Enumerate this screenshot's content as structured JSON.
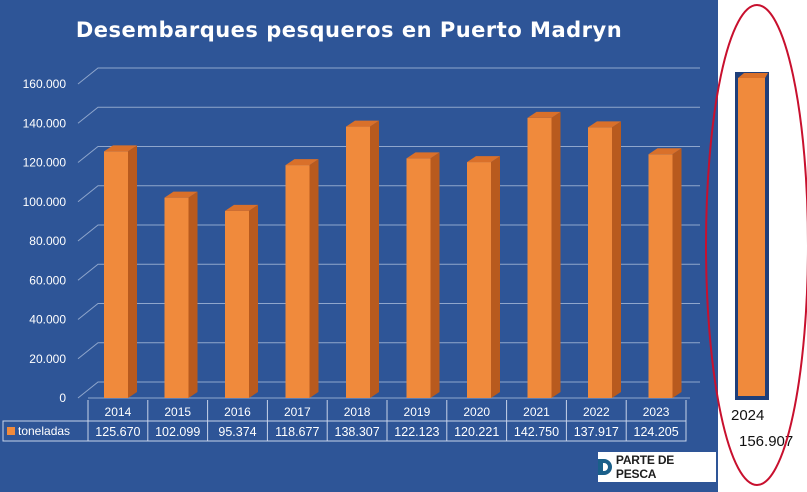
{
  "chart_data": {
    "type": "bar",
    "title": "Desembarques pesqueros en Puerto Madryn",
    "categories": [
      "2014",
      "2015",
      "2016",
      "2017",
      "2018",
      "2019",
      "2020",
      "2021",
      "2022",
      "2023"
    ],
    "series": [
      {
        "name": "toneladas",
        "values": [
          125670,
          102099,
          95374,
          118677,
          138307,
          122123,
          120221,
          142750,
          137917,
          124205
        ]
      }
    ],
    "value_labels": [
      "125.670",
      "102.099",
      "95.374",
      "118.677",
      "138.307",
      "122.123",
      "120.221",
      "142.750",
      "137.917",
      "124.205"
    ],
    "yticks": [
      0,
      20000,
      40000,
      60000,
      80000,
      100000,
      120000,
      140000,
      160000
    ],
    "ytick_labels": [
      "0",
      "20.000",
      "40.000",
      "60.000",
      "80.000",
      "100.000",
      "120.000",
      "140.000",
      "160.000"
    ],
    "ylim": [
      0,
      160000
    ],
    "grid": true,
    "legend": "data-table",
    "inset": {
      "category": "2024",
      "value": 156907,
      "value_label": "156.907"
    },
    "colors": {
      "background": "#2e5597",
      "bar": "#f08a3c",
      "bar_side": "#b85a1e",
      "bar_top": "#d9702a",
      "text": "#ffffff",
      "grid": "#8fa6cc",
      "highlight": "#c8102e"
    }
  },
  "logo": {
    "text": "PARTE DE PESCA",
    "mark": "®"
  }
}
